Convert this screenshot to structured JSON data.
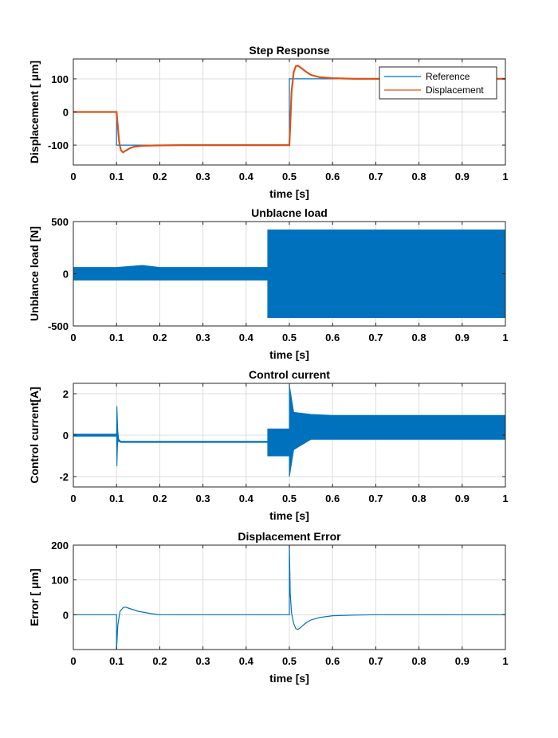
{
  "colors": {
    "series1": "#0072BD",
    "series2": "#D95319",
    "grid": "#dcdcdc"
  },
  "chart_data": [
    {
      "type": "line",
      "title": "Step Response",
      "xlabel": "time [s]",
      "ylabel": "Displacement [ μm]",
      "xlim": [
        0,
        1
      ],
      "ylim": [
        -160,
        160
      ],
      "xticks": [
        0,
        0.1,
        0.2,
        0.3,
        0.4,
        0.5,
        0.6,
        0.7,
        0.8,
        0.9,
        1
      ],
      "xticklabels": [
        "0",
        "0.1",
        "0.2",
        "0.3",
        "0.4",
        "0.5",
        "0.6",
        "0.7",
        "0.8",
        "0.9",
        "1"
      ],
      "yticks": [
        -100,
        0,
        100
      ],
      "yticklabels": [
        "-100",
        "0",
        "100"
      ],
      "grid": true,
      "legend": "top-right",
      "series": [
        {
          "name": "Reference",
          "color": "#0072BD",
          "x": [
            0,
            0.1,
            0.1,
            0.5,
            0.5,
            1.0
          ],
          "y": [
            0,
            0,
            -100,
            -100,
            100,
            100
          ]
        },
        {
          "name": "Displacement",
          "color": "#D95319",
          "x": [
            0,
            0.1,
            0.102,
            0.106,
            0.11,
            0.115,
            0.12,
            0.13,
            0.14,
            0.16,
            0.19,
            0.25,
            0.3,
            0.35,
            0.4,
            0.45,
            0.5,
            0.502,
            0.505,
            0.51,
            0.515,
            0.52,
            0.53,
            0.54,
            0.55,
            0.57,
            0.6,
            0.65,
            0.7,
            0.8,
            0.9,
            1.0
          ],
          "y": [
            0,
            0,
            -30,
            -90,
            -115,
            -122,
            -118,
            -110,
            -105,
            -102,
            -101,
            -100,
            -100,
            -100,
            -100,
            -100,
            -100,
            -40,
            60,
            120,
            138,
            140,
            130,
            120,
            112,
            105,
            102,
            100,
            100,
            100,
            100,
            100
          ]
        }
      ]
    },
    {
      "type": "line",
      "title": "Unblacne load",
      "xlabel": "time [s]",
      "ylabel": "Unblance load [N]",
      "xlim": [
        0,
        1
      ],
      "ylim": [
        -500,
        500
      ],
      "xticks": [
        0,
        0.1,
        0.2,
        0.3,
        0.4,
        0.5,
        0.6,
        0.7,
        0.8,
        0.9,
        1
      ],
      "xticklabels": [
        "0",
        "0.1",
        "0.2",
        "0.3",
        "0.4",
        "0.5",
        "0.6",
        "0.7",
        "0.8",
        "0.9",
        "1"
      ],
      "yticks": [
        -500,
        0,
        500
      ],
      "yticklabels": [
        "-500",
        "0",
        "500"
      ],
      "grid": true,
      "series": [
        {
          "color": "#0072BD",
          "x": [
            0,
            0.1,
            0.16,
            0.2,
            0.3,
            0.4,
            0.45,
            0.45,
            0.5,
            0.6,
            0.7,
            0.8,
            0.9,
            1.0
          ],
          "y_low": [
            -60,
            -60,
            -60,
            -60,
            -60,
            -60,
            -60,
            -420,
            -420,
            -420,
            -420,
            -420,
            -420,
            -420
          ],
          "y_high": [
            60,
            60,
            80,
            60,
            60,
            60,
            60,
            420,
            420,
            420,
            420,
            420,
            420,
            420
          ]
        }
      ]
    },
    {
      "type": "line",
      "title": "Control current",
      "xlabel": "time [s]",
      "ylabel": "Control current[A]",
      "xlim": [
        0,
        1
      ],
      "ylim": [
        -2.5,
        2.5
      ],
      "xticks": [
        0,
        0.1,
        0.2,
        0.3,
        0.4,
        0.5,
        0.6,
        0.7,
        0.8,
        0.9,
        1
      ],
      "xticklabels": [
        "0",
        "0.1",
        "0.2",
        "0.3",
        "0.4",
        "0.5",
        "0.6",
        "0.7",
        "0.8",
        "0.9",
        "1"
      ],
      "yticks": [
        -2,
        0,
        2
      ],
      "yticklabels": [
        "-2",
        "0",
        "2"
      ],
      "grid": true,
      "series": [
        {
          "color": "#0072BD",
          "x": [
            0,
            0.1,
            0.101,
            0.102,
            0.103,
            0.105,
            0.11,
            0.12,
            0.15,
            0.2,
            0.3,
            0.4,
            0.45,
            0.45,
            0.5,
            0.5,
            0.51,
            0.55,
            0.6,
            0.7,
            0.8,
            0.9,
            1.0
          ],
          "y_low": [
            -0.05,
            -0.05,
            -1.5,
            -0.6,
            -0.3,
            -0.3,
            -0.35,
            -0.35,
            -0.35,
            -0.35,
            -0.35,
            -0.35,
            -0.35,
            -1.0,
            -1.0,
            -2.0,
            -0.7,
            -0.2,
            -0.2,
            -0.2,
            -0.2,
            -0.2,
            -0.2
          ],
          "y_high": [
            0.05,
            0.05,
            1.4,
            0.7,
            0.2,
            -0.2,
            -0.3,
            -0.3,
            -0.3,
            -0.3,
            -0.3,
            -0.3,
            -0.3,
            0.3,
            0.3,
            2.4,
            1.1,
            1.0,
            0.95,
            0.95,
            0.95,
            0.95,
            0.95
          ]
        }
      ]
    },
    {
      "type": "line",
      "title": "Displacement Error",
      "xlabel": "time [s]",
      "ylabel": "Error [ μm]",
      "xlim": [
        0,
        1
      ],
      "ylim": [
        -100,
        200
      ],
      "xticks": [
        0,
        0.1,
        0.2,
        0.3,
        0.4,
        0.5,
        0.6,
        0.7,
        0.8,
        0.9,
        1
      ],
      "xticklabels": [
        "0",
        "0.1",
        "0.2",
        "0.3",
        "0.4",
        "0.5",
        "0.6",
        "0.7",
        "0.8",
        "0.9",
        "1"
      ],
      "yticks": [
        0,
        100,
        200
      ],
      "yticklabels": [
        "0",
        "100",
        "200"
      ],
      "grid": true,
      "series": [
        {
          "color": "#0072BD",
          "x": [
            0,
            0.1,
            0.1,
            0.103,
            0.108,
            0.115,
            0.12,
            0.13,
            0.15,
            0.18,
            0.2,
            0.3,
            0.45,
            0.5,
            0.5,
            0.502,
            0.505,
            0.51,
            0.515,
            0.52,
            0.525,
            0.53,
            0.54,
            0.55,
            0.57,
            0.6,
            0.65,
            0.7,
            0.8,
            0.9,
            1.0
          ],
          "y": [
            0,
            0,
            -100,
            -30,
            10,
            20,
            22,
            18,
            10,
            3,
            0,
            0,
            0,
            0,
            200,
            60,
            5,
            -25,
            -40,
            -42,
            -38,
            -32,
            -22,
            -15,
            -8,
            -3,
            -1,
            0,
            0,
            0,
            0
          ]
        }
      ]
    }
  ]
}
